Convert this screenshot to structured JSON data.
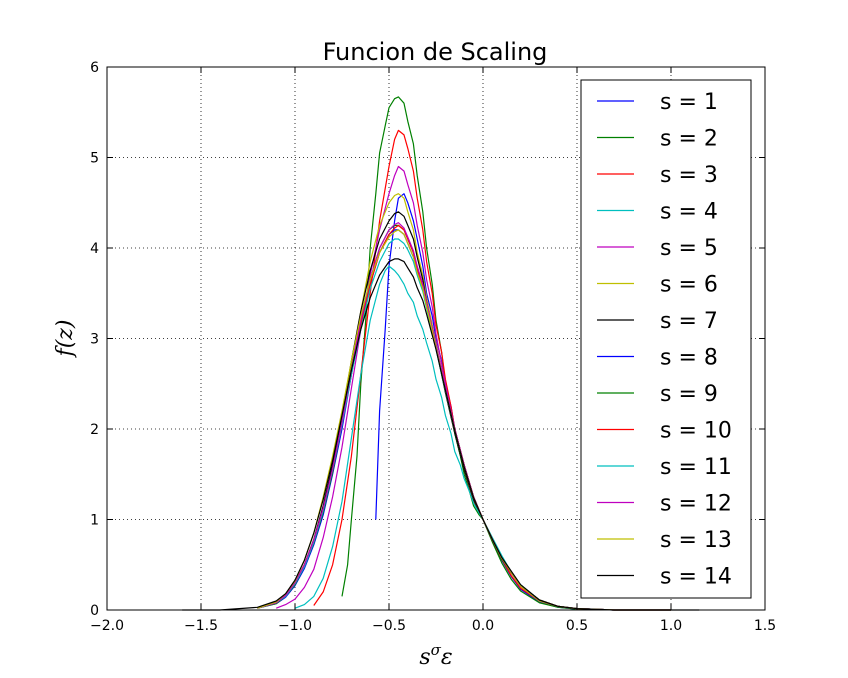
{
  "chart_data": {
    "type": "line",
    "title": "Funcion de Scaling",
    "xlabel": "s^σ ε",
    "xlabel_base": "s",
    "xlabel_sup": "σ",
    "xlabel_tail": "ε",
    "ylabel": "f(z)",
    "xlim": [
      -2.0,
      1.5
    ],
    "ylim": [
      0,
      6
    ],
    "xticks": [
      -2.0,
      -1.5,
      -1.0,
      -0.5,
      0.0,
      0.5,
      1.0,
      1.5
    ],
    "xtick_labels": [
      "−2.0",
      "−1.5",
      "−1.0",
      "−0.5",
      "0.0",
      "0.5",
      "1.0",
      "1.5"
    ],
    "yticks": [
      0,
      1,
      2,
      3,
      4,
      5,
      6
    ],
    "ytick_labels": [
      "0",
      "1",
      "2",
      "3",
      "4",
      "5",
      "6"
    ],
    "grid": true,
    "legend_position": "top-right",
    "series": [
      {
        "name": "s = 1",
        "color": "#0000ff",
        "x": [
          -0.57,
          -0.55,
          -0.52,
          -0.5,
          -0.47,
          -0.45,
          -0.42,
          -0.4,
          -0.37,
          -0.35,
          -0.32,
          -0.3,
          -0.27,
          -0.25,
          -0.22,
          -0.2,
          -0.17,
          -0.15,
          -0.12,
          -0.1,
          -0.07,
          -0.05,
          -0.02,
          0.0,
          0.05,
          0.1,
          0.15,
          0.2,
          0.3,
          0.4,
          0.5,
          0.7,
          1.0
        ],
        "y": [
          1.0,
          2.2,
          3.1,
          3.8,
          4.3,
          4.55,
          4.6,
          4.5,
          4.3,
          4.1,
          3.8,
          3.5,
          3.25,
          3.0,
          2.75,
          2.5,
          2.25,
          2.0,
          1.75,
          1.55,
          1.35,
          1.2,
          1.08,
          1.0,
          0.78,
          0.55,
          0.37,
          0.23,
          0.09,
          0.03,
          0.01,
          0.0,
          0.0
        ]
      },
      {
        "name": "s = 2",
        "color": "#008000",
        "x": [
          -0.75,
          -0.72,
          -0.7,
          -0.67,
          -0.65,
          -0.62,
          -0.6,
          -0.57,
          -0.55,
          -0.52,
          -0.5,
          -0.47,
          -0.45,
          -0.42,
          -0.4,
          -0.37,
          -0.35,
          -0.32,
          -0.3,
          -0.27,
          -0.25,
          -0.22,
          -0.2,
          -0.17,
          -0.15,
          -0.12,
          -0.1,
          -0.07,
          -0.05,
          -0.02,
          0.0,
          0.05,
          0.1,
          0.15,
          0.2,
          0.3,
          0.4,
          0.5,
          0.7,
          1.0
        ],
        "y": [
          0.15,
          0.5,
          1.0,
          1.7,
          2.5,
          3.3,
          4.0,
          4.6,
          5.05,
          5.35,
          5.55,
          5.65,
          5.67,
          5.6,
          5.4,
          5.15,
          4.8,
          4.4,
          4.0,
          3.6,
          3.2,
          2.85,
          2.5,
          2.2,
          1.95,
          1.7,
          1.5,
          1.3,
          1.15,
          1.05,
          1.0,
          0.75,
          0.52,
          0.34,
          0.21,
          0.08,
          0.03,
          0.01,
          0.0,
          0.0
        ]
      },
      {
        "name": "s = 3",
        "color": "#ff0000",
        "x": [
          -0.9,
          -0.85,
          -0.8,
          -0.75,
          -0.7,
          -0.65,
          -0.6,
          -0.55,
          -0.5,
          -0.47,
          -0.45,
          -0.42,
          -0.4,
          -0.37,
          -0.35,
          -0.32,
          -0.3,
          -0.27,
          -0.25,
          -0.22,
          -0.2,
          -0.17,
          -0.15,
          -0.12,
          -0.1,
          -0.07,
          -0.05,
          -0.02,
          0.0,
          0.05,
          0.1,
          0.15,
          0.2,
          0.3,
          0.4,
          0.5,
          0.7,
          1.0
        ],
        "y": [
          0.05,
          0.2,
          0.5,
          1.0,
          1.7,
          2.6,
          3.5,
          4.3,
          4.9,
          5.2,
          5.3,
          5.25,
          5.1,
          4.85,
          4.55,
          4.2,
          3.85,
          3.5,
          3.15,
          2.85,
          2.55,
          2.25,
          2.0,
          1.75,
          1.55,
          1.35,
          1.2,
          1.08,
          1.0,
          0.78,
          0.56,
          0.38,
          0.24,
          0.1,
          0.04,
          0.015,
          0.0,
          0.0
        ]
      },
      {
        "name": "s = 4",
        "color": "#00bfbf",
        "x": [
          -1.0,
          -0.95,
          -0.9,
          -0.85,
          -0.8,
          -0.75,
          -0.7,
          -0.65,
          -0.6,
          -0.55,
          -0.52,
          -0.5,
          -0.47,
          -0.45,
          -0.42,
          -0.4,
          -0.37,
          -0.35,
          -0.32,
          -0.3,
          -0.27,
          -0.25,
          -0.22,
          -0.2,
          -0.17,
          -0.15,
          -0.12,
          -0.1,
          -0.07,
          -0.05,
          -0.02,
          0.0,
          0.05,
          0.1,
          0.15,
          0.2,
          0.3,
          0.4,
          0.5,
          0.7,
          1.0
        ],
        "y": [
          0.02,
          0.06,
          0.15,
          0.35,
          0.7,
          1.2,
          1.9,
          2.6,
          3.2,
          3.6,
          3.75,
          3.8,
          3.75,
          3.7,
          3.6,
          3.5,
          3.4,
          3.25,
          3.1,
          2.95,
          2.75,
          2.55,
          2.35,
          2.15,
          1.95,
          1.75,
          1.6,
          1.45,
          1.3,
          1.18,
          1.07,
          1.0,
          0.8,
          0.6,
          0.42,
          0.28,
          0.11,
          0.04,
          0.015,
          0.0,
          0.0
        ]
      },
      {
        "name": "s = 5",
        "color": "#bf00bf",
        "x": [
          -1.1,
          -1.05,
          -1.0,
          -0.95,
          -0.9,
          -0.85,
          -0.8,
          -0.75,
          -0.7,
          -0.65,
          -0.6,
          -0.55,
          -0.5,
          -0.47,
          -0.45,
          -0.42,
          -0.4,
          -0.37,
          -0.35,
          -0.32,
          -0.3,
          -0.27,
          -0.25,
          -0.2,
          -0.15,
          -0.1,
          -0.05,
          0.0,
          0.05,
          0.1,
          0.2,
          0.3,
          0.4,
          0.5,
          0.7,
          1.0
        ],
        "y": [
          0.02,
          0.06,
          0.12,
          0.25,
          0.45,
          0.8,
          1.25,
          1.8,
          2.45,
          3.1,
          3.7,
          4.2,
          4.6,
          4.8,
          4.9,
          4.85,
          4.7,
          4.5,
          4.25,
          3.95,
          3.65,
          3.35,
          3.05,
          2.5,
          2.0,
          1.6,
          1.25,
          1.0,
          0.78,
          0.57,
          0.26,
          0.1,
          0.04,
          0.015,
          0.0,
          0.0
        ]
      },
      {
        "name": "s = 6",
        "color": "#bfbf00",
        "x": [
          -1.2,
          -1.1,
          -1.05,
          -1.0,
          -0.95,
          -0.9,
          -0.85,
          -0.8,
          -0.75,
          -0.7,
          -0.65,
          -0.6,
          -0.55,
          -0.5,
          -0.47,
          -0.45,
          -0.42,
          -0.4,
          -0.37,
          -0.35,
          -0.32,
          -0.3,
          -0.25,
          -0.2,
          -0.15,
          -0.1,
          -0.05,
          0.0,
          0.05,
          0.1,
          0.2,
          0.3,
          0.4,
          0.5,
          0.7,
          1.0
        ],
        "y": [
          0.02,
          0.08,
          0.15,
          0.3,
          0.5,
          0.75,
          1.1,
          1.55,
          2.1,
          2.7,
          3.3,
          3.85,
          4.25,
          4.5,
          4.58,
          4.6,
          4.55,
          4.4,
          4.2,
          3.95,
          3.7,
          3.45,
          2.95,
          2.45,
          2.0,
          1.6,
          1.25,
          1.0,
          0.77,
          0.56,
          0.26,
          0.1,
          0.04,
          0.015,
          0.0,
          0.0
        ]
      },
      {
        "name": "s = 7",
        "color": "#000000",
        "x": [
          -1.2,
          -1.1,
          -1.05,
          -1.0,
          -0.95,
          -0.9,
          -0.85,
          -0.8,
          -0.75,
          -0.7,
          -0.65,
          -0.6,
          -0.55,
          -0.5,
          -0.47,
          -0.45,
          -0.42,
          -0.4,
          -0.37,
          -0.35,
          -0.32,
          -0.3,
          -0.25,
          -0.2,
          -0.15,
          -0.1,
          -0.05,
          0.0,
          0.05,
          0.1,
          0.2,
          0.3,
          0.4,
          0.5,
          0.7,
          1.0
        ],
        "y": [
          0.02,
          0.08,
          0.16,
          0.3,
          0.5,
          0.78,
          1.15,
          1.6,
          2.15,
          2.75,
          3.3,
          3.75,
          4.1,
          4.3,
          4.38,
          4.4,
          4.35,
          4.25,
          4.1,
          3.9,
          3.65,
          3.4,
          2.9,
          2.4,
          1.95,
          1.55,
          1.22,
          1.0,
          0.77,
          0.56,
          0.27,
          0.11,
          0.04,
          0.015,
          0.0,
          0.0
        ]
      },
      {
        "name": "s = 8",
        "color": "#0000ff",
        "x": [
          -1.2,
          -1.1,
          -1.05,
          -1.0,
          -0.95,
          -0.9,
          -0.85,
          -0.8,
          -0.75,
          -0.7,
          -0.65,
          -0.6,
          -0.55,
          -0.5,
          -0.47,
          -0.45,
          -0.42,
          -0.4,
          -0.37,
          -0.35,
          -0.32,
          -0.3,
          -0.25,
          -0.2,
          -0.15,
          -0.1,
          -0.05,
          0.0,
          0.05,
          0.1,
          0.2,
          0.3,
          0.4,
          0.5,
          0.7,
          1.0
        ],
        "y": [
          0.02,
          0.07,
          0.14,
          0.27,
          0.46,
          0.72,
          1.05,
          1.5,
          2.0,
          2.6,
          3.15,
          3.6,
          3.95,
          4.15,
          4.2,
          4.2,
          4.15,
          4.05,
          3.9,
          3.75,
          3.55,
          3.35,
          2.9,
          2.45,
          2.0,
          1.6,
          1.25,
          1.0,
          0.78,
          0.57,
          0.27,
          0.11,
          0.04,
          0.015,
          0.0,
          0.0
        ]
      },
      {
        "name": "s = 9",
        "color": "#008000",
        "x": [
          -1.2,
          -1.1,
          -1.05,
          -1.0,
          -0.95,
          -0.9,
          -0.85,
          -0.8,
          -0.75,
          -0.7,
          -0.65,
          -0.6,
          -0.55,
          -0.5,
          -0.47,
          -0.45,
          -0.42,
          -0.4,
          -0.37,
          -0.35,
          -0.32,
          -0.3,
          -0.25,
          -0.2,
          -0.15,
          -0.1,
          -0.05,
          0.0,
          0.05,
          0.1,
          0.2,
          0.3,
          0.4,
          0.5,
          0.7,
          1.0
        ],
        "y": [
          0.02,
          0.07,
          0.15,
          0.28,
          0.48,
          0.74,
          1.08,
          1.52,
          2.05,
          2.65,
          3.2,
          3.65,
          4.0,
          4.2,
          4.25,
          4.25,
          4.2,
          4.1,
          3.95,
          3.78,
          3.58,
          3.38,
          2.92,
          2.45,
          2.0,
          1.6,
          1.25,
          1.0,
          0.78,
          0.57,
          0.27,
          0.11,
          0.04,
          0.015,
          0.0,
          0.0
        ]
      },
      {
        "name": "s = 10",
        "color": "#ff0000",
        "x": [
          -1.2,
          -1.1,
          -1.05,
          -1.0,
          -0.95,
          -0.9,
          -0.85,
          -0.8,
          -0.75,
          -0.7,
          -0.65,
          -0.6,
          -0.55,
          -0.5,
          -0.47,
          -0.45,
          -0.42,
          -0.4,
          -0.37,
          -0.35,
          -0.32,
          -0.3,
          -0.25,
          -0.2,
          -0.15,
          -0.1,
          -0.05,
          0.0,
          0.05,
          0.1,
          0.2,
          0.3,
          0.4,
          0.5,
          0.7,
          1.0
        ],
        "y": [
          0.02,
          0.08,
          0.16,
          0.3,
          0.5,
          0.77,
          1.12,
          1.55,
          2.05,
          2.6,
          3.15,
          3.6,
          3.95,
          4.15,
          4.22,
          4.25,
          4.2,
          4.1,
          3.95,
          3.78,
          3.58,
          3.38,
          2.92,
          2.45,
          2.0,
          1.6,
          1.25,
          1.0,
          0.78,
          0.57,
          0.27,
          0.11,
          0.04,
          0.015,
          0.0,
          0.0
        ]
      },
      {
        "name": "s = 11",
        "color": "#00bfbf",
        "x": [
          -1.2,
          -1.1,
          -1.05,
          -1.0,
          -0.95,
          -0.9,
          -0.85,
          -0.8,
          -0.75,
          -0.7,
          -0.65,
          -0.6,
          -0.55,
          -0.5,
          -0.47,
          -0.45,
          -0.42,
          -0.4,
          -0.37,
          -0.35,
          -0.32,
          -0.3,
          -0.25,
          -0.2,
          -0.15,
          -0.1,
          -0.05,
          0.0,
          0.05,
          0.1,
          0.2,
          0.3,
          0.4,
          0.5,
          0.7,
          1.0
        ],
        "y": [
          0.02,
          0.08,
          0.15,
          0.29,
          0.48,
          0.75,
          1.1,
          1.55,
          2.05,
          2.6,
          3.1,
          3.55,
          3.85,
          4.05,
          4.1,
          4.1,
          4.05,
          3.98,
          3.85,
          3.7,
          3.52,
          3.33,
          2.88,
          2.42,
          1.98,
          1.58,
          1.24,
          1.0,
          0.78,
          0.57,
          0.27,
          0.11,
          0.04,
          0.015,
          0.0,
          0.0
        ]
      },
      {
        "name": "s = 12",
        "color": "#bf00bf",
        "x": [
          -1.2,
          -1.1,
          -1.05,
          -1.0,
          -0.95,
          -0.9,
          -0.85,
          -0.8,
          -0.75,
          -0.7,
          -0.65,
          -0.6,
          -0.55,
          -0.5,
          -0.47,
          -0.45,
          -0.42,
          -0.4,
          -0.37,
          -0.35,
          -0.32,
          -0.3,
          -0.25,
          -0.2,
          -0.15,
          -0.1,
          -0.05,
          0.0,
          0.05,
          0.1,
          0.2,
          0.3,
          0.4,
          0.5,
          0.7,
          1.0
        ],
        "y": [
          0.02,
          0.08,
          0.16,
          0.3,
          0.5,
          0.77,
          1.12,
          1.56,
          2.08,
          2.65,
          3.2,
          3.65,
          4.0,
          4.2,
          4.26,
          4.28,
          4.22,
          4.12,
          3.97,
          3.8,
          3.6,
          3.4,
          2.93,
          2.46,
          2.0,
          1.6,
          1.25,
          1.0,
          0.78,
          0.57,
          0.27,
          0.11,
          0.04,
          0.015,
          0.0,
          0.0
        ]
      },
      {
        "name": "s = 13",
        "color": "#bfbf00",
        "x": [
          -1.2,
          -1.1,
          -1.05,
          -1.0,
          -0.95,
          -0.9,
          -0.85,
          -0.8,
          -0.75,
          -0.7,
          -0.65,
          -0.6,
          -0.55,
          -0.5,
          -0.47,
          -0.45,
          -0.42,
          -0.4,
          -0.37,
          -0.35,
          -0.32,
          -0.3,
          -0.25,
          -0.2,
          -0.15,
          -0.1,
          -0.05,
          0.0,
          0.05,
          0.1,
          0.2,
          0.3,
          0.4,
          0.5,
          0.7,
          1.0
        ],
        "y": [
          0.02,
          0.09,
          0.18,
          0.32,
          0.55,
          0.85,
          1.25,
          1.7,
          2.2,
          2.75,
          3.25,
          3.65,
          3.95,
          4.12,
          4.18,
          4.2,
          4.15,
          4.05,
          3.9,
          3.73,
          3.55,
          3.35,
          2.9,
          2.43,
          1.98,
          1.58,
          1.24,
          1.0,
          0.78,
          0.57,
          0.27,
          0.11,
          0.04,
          0.015,
          0.0,
          0.0
        ]
      },
      {
        "name": "s = 14",
        "color": "#000000",
        "x": [
          -1.6,
          -1.4,
          -1.2,
          -1.1,
          -1.05,
          -1.0,
          -0.95,
          -0.9,
          -0.85,
          -0.8,
          -0.75,
          -0.7,
          -0.65,
          -0.6,
          -0.55,
          -0.5,
          -0.47,
          -0.45,
          -0.42,
          -0.4,
          -0.37,
          -0.35,
          -0.32,
          -0.3,
          -0.25,
          -0.2,
          -0.15,
          -0.1,
          -0.05,
          0.0,
          0.05,
          0.1,
          0.2,
          0.3,
          0.4,
          0.5,
          0.7,
          1.0,
          1.15
        ],
        "y": [
          0.0,
          0.0,
          0.03,
          0.1,
          0.18,
          0.33,
          0.55,
          0.85,
          1.22,
          1.65,
          2.15,
          2.65,
          3.1,
          3.45,
          3.7,
          3.85,
          3.88,
          3.88,
          3.85,
          3.78,
          3.68,
          3.56,
          3.42,
          3.27,
          2.88,
          2.43,
          1.98,
          1.58,
          1.24,
          1.0,
          0.78,
          0.58,
          0.28,
          0.11,
          0.04,
          0.015,
          0.0,
          0.0,
          0.0
        ]
      }
    ]
  }
}
